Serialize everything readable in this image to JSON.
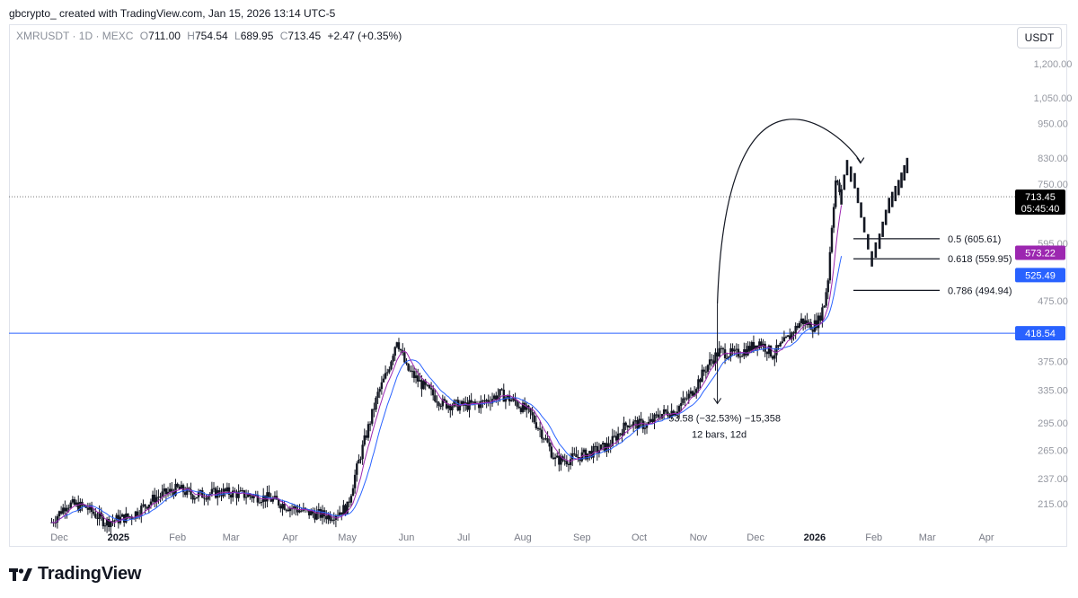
{
  "caption": "gbcrypto_ created with TradingView.com, Jan 15, 2026 13:14 UTC-5",
  "legend": {
    "symbol": "XMRUSDT · 1D · MEXC",
    "o_label": "O",
    "o_value": "711.00",
    "h_label": "H",
    "h_value": "754.54",
    "l_label": "L",
    "l_value": "689.95",
    "c_label": "C",
    "c_value": "713.45",
    "change": "+2.47 (+0.35%)"
  },
  "currency": "USDT",
  "brand": {
    "name": "TradingView",
    "logo_icon": "tradingview-logo-icon"
  },
  "colors": {
    "candle": "#131722",
    "ma_fast": "#9c27b0",
    "ma_slow": "#2962ff",
    "hline": "#2962ff",
    "last_price_bg": "#000000",
    "fast_badge_bg": "#9c27b0",
    "slow_badge_bg": "#2962ff",
    "hline_badge_bg": "#2962ff"
  },
  "chart_data": {
    "type": "candlestick",
    "scale": "log",
    "ylim": [
      200,
      1250
    ],
    "y_ticks": [
      "1,200.00",
      "1,050.00",
      "950.00",
      "830.00",
      "750.00",
      "595.00",
      "475.00",
      "375.00",
      "335.00",
      "295.00",
      "265.00",
      "237.00",
      "215.00"
    ],
    "y_tick_values": [
      1200,
      1050,
      950,
      830,
      750,
      595,
      475,
      375,
      335,
      295,
      265,
      237,
      215
    ],
    "x_ticks": [
      "Dec",
      "2025",
      "Feb",
      "Mar",
      "Apr",
      "May",
      "Jun",
      "Jul",
      "Aug",
      "Sep",
      "Oct",
      "Nov",
      "Dec",
      "2026",
      "Feb",
      "Mar",
      "Apr"
    ],
    "x_tick_dates": [
      "2024-12-01",
      "2025-01-01",
      "2025-02-01",
      "2025-03-01",
      "2025-04-01",
      "2025-05-01",
      "2025-06-01",
      "2025-07-01",
      "2025-08-01",
      "2025-09-01",
      "2025-10-01",
      "2025-11-01",
      "2025-12-01",
      "2026-01-01",
      "2026-02-01",
      "2026-03-01",
      "2026-04-01"
    ],
    "x_tick_bold": [
      false,
      true,
      false,
      false,
      false,
      false,
      false,
      false,
      false,
      false,
      false,
      false,
      false,
      true,
      false,
      false,
      false
    ],
    "price_path": [
      [
        "2024-11-27",
        200
      ],
      [
        "2024-12-05",
        215
      ],
      [
        "2024-12-15",
        212
      ],
      [
        "2024-12-25",
        200
      ],
      [
        "2025-01-08",
        205
      ],
      [
        "2025-01-20",
        220
      ],
      [
        "2025-02-01",
        228
      ],
      [
        "2025-02-10",
        222
      ],
      [
        "2025-02-25",
        225
      ],
      [
        "2025-03-10",
        222
      ],
      [
        "2025-03-20",
        220
      ],
      [
        "2025-04-01",
        212
      ],
      [
        "2025-04-12",
        207
      ],
      [
        "2025-04-22",
        205
      ],
      [
        "2025-05-01",
        212
      ],
      [
        "2025-05-05",
        240
      ],
      [
        "2025-05-10",
        275
      ],
      [
        "2025-05-17",
        330
      ],
      [
        "2025-05-22",
        360
      ],
      [
        "2025-05-27",
        410
      ],
      [
        "2025-06-01",
        365
      ],
      [
        "2025-06-10",
        340
      ],
      [
        "2025-06-20",
        318
      ],
      [
        "2025-06-30",
        315
      ],
      [
        "2025-07-10",
        318
      ],
      [
        "2025-07-20",
        330
      ],
      [
        "2025-07-28",
        320
      ],
      [
        "2025-08-05",
        305
      ],
      [
        "2025-08-12",
        280
      ],
      [
        "2025-08-18",
        255
      ],
      [
        "2025-08-24",
        255
      ],
      [
        "2025-09-05",
        262
      ],
      [
        "2025-09-15",
        270
      ],
      [
        "2025-09-25",
        295
      ],
      [
        "2025-10-05",
        292
      ],
      [
        "2025-10-12",
        305
      ],
      [
        "2025-10-20",
        310
      ],
      [
        "2025-10-28",
        330
      ],
      [
        "2025-11-06",
        370
      ],
      [
        "2025-11-12",
        390
      ],
      [
        "2025-11-20",
        385
      ],
      [
        "2025-11-28",
        395
      ],
      [
        "2025-12-03",
        405
      ],
      [
        "2025-12-10",
        385
      ],
      [
        "2025-12-18",
        410
      ],
      [
        "2025-12-25",
        440
      ],
      [
        "2025-12-31",
        430
      ],
      [
        "2026-01-03",
        440
      ],
      [
        "2026-01-06",
        470
      ],
      [
        "2026-01-08",
        520
      ],
      [
        "2026-01-10",
        640
      ],
      [
        "2026-01-12",
        760
      ],
      [
        "2026-01-15",
        713
      ]
    ],
    "last_price": "713.45",
    "countdown": "05:45:40",
    "ma_fast_value": "573.22",
    "ma_slow_value": "525.49",
    "hline_value": "418.54",
    "fib_levels": [
      {
        "label": "0.5 (605.61)",
        "value": 605.61
      },
      {
        "label": "0.618 (559.95)",
        "value": 559.95
      },
      {
        "label": "0.786 (494.94)",
        "value": 494.94
      }
    ],
    "projected_path": [
      [
        "2026-01-15",
        713.45
      ],
      [
        "2026-01-18",
        800
      ],
      [
        "2026-01-22",
        760
      ],
      [
        "2026-01-27",
        640
      ],
      [
        "2026-01-31",
        560
      ],
      [
        "2026-02-04",
        600
      ],
      [
        "2026-02-09",
        690
      ],
      [
        "2026-02-14",
        740
      ],
      [
        "2026-02-20",
        830
      ]
    ],
    "measure": {
      "text": "53.58 (−32.53%) −15,358",
      "subtext": "12 bars, 12d",
      "from_date": "2025-11-11",
      "from_value": 470,
      "to_value": 318
    },
    "arc": {
      "from_date": "2025-11-11",
      "from_value": 470,
      "to_date": "2026-01-25",
      "to_value": 800
    }
  }
}
